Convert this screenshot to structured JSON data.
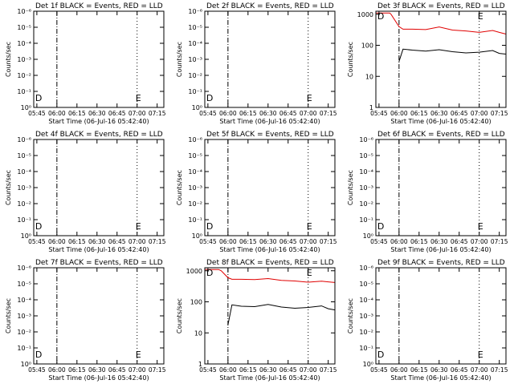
{
  "figure": {
    "background": "#ffffff",
    "axis_color": "#000000",
    "events_color": "#000000",
    "lld_color": "#e00000"
  },
  "chart_data": [
    {
      "type": "line",
      "title": "Det 1f BLACK = Events, RED = LLD",
      "xlabel": "Start Time (06-Jul-16 05:42:40)",
      "ylabel": "Counts/sec",
      "xticks": [
        "05:45",
        "06:00",
        "06:15",
        "06:30",
        "06:45",
        "07:00",
        "07:15"
      ],
      "yticks": [
        "10⁰",
        "10⁻¹",
        "10⁻²",
        "10⁻³",
        "10⁻⁴",
        "10⁻⁵",
        "10⁻⁶"
      ],
      "scale": "low",
      "markers": [
        {
          "time": "06:00",
          "style": "dashdot"
        },
        {
          "time": "07:00",
          "style": "dotted"
        }
      ],
      "labels": [
        {
          "text": "D",
          "time": "05:45"
        },
        {
          "text": "E",
          "time": "07:00"
        }
      ],
      "series": []
    },
    {
      "type": "line",
      "title": "Det 2f BLACK = Events, RED = LLD",
      "xlabel": "Start Time (06-Jul-16 05:42:40)",
      "ylabel": "Counts/sec",
      "xticks": [
        "05:45",
        "06:00",
        "06:15",
        "06:30",
        "06:45",
        "07:00",
        "07:15"
      ],
      "yticks": [
        "10⁰",
        "10⁻¹",
        "10⁻²",
        "10⁻³",
        "10⁻⁴",
        "10⁻⁵",
        "10⁻⁶"
      ],
      "scale": "low",
      "markers": [
        {
          "time": "06:00",
          "style": "dashdot"
        },
        {
          "time": "07:00",
          "style": "dotted"
        }
      ],
      "labels": [
        {
          "text": "D",
          "time": "05:45"
        },
        {
          "text": "E",
          "time": "07:00"
        }
      ],
      "series": []
    },
    {
      "type": "line",
      "title": "Det 3f BLACK = Events, RED = LLD",
      "xlabel": "Start Time (06-Jul-16 05:42:40)",
      "ylabel": "Counts/sec",
      "xticks": [
        "05:45",
        "06:00",
        "06:15",
        "06:30",
        "06:45",
        "07:00",
        "07:15"
      ],
      "yticks": [
        "1",
        "10",
        "100",
        "1000"
      ],
      "scale": "high",
      "markers": [
        {
          "time": "06:00",
          "style": "dashdot"
        },
        {
          "time": "07:00",
          "style": "dotted"
        }
      ],
      "labels": [
        {
          "text": "D",
          "time": "05:45"
        },
        {
          "text": "E",
          "time": "07:00"
        }
      ],
      "series": [
        {
          "color": "red",
          "x": [
            "05:43",
            "05:53",
            "05:54",
            "06:00",
            "06:03",
            "06:10",
            "06:20",
            "06:30",
            "06:40",
            "06:50",
            "07:00",
            "07:10",
            "07:15",
            "07:20"
          ],
          "y": [
            1100,
            1100,
            1000,
            400,
            330,
            330,
            320,
            390,
            310,
            290,
            260,
            300,
            260,
            230
          ]
        },
        {
          "color": "black",
          "x": [
            "06:00",
            "06:03",
            "06:10",
            "06:20",
            "06:30",
            "06:40",
            "06:50",
            "07:00",
            "07:10",
            "07:15",
            "07:20"
          ],
          "y": [
            30,
            75,
            70,
            65,
            72,
            62,
            57,
            60,
            68,
            55,
            52
          ]
        }
      ]
    },
    {
      "type": "line",
      "title": "Det 4f BLACK = Events, RED = LLD",
      "xlabel": "Start Time (06-Jul-16 05:42:40)",
      "ylabel": "Counts/sec",
      "xticks": [
        "05:45",
        "06:00",
        "06:15",
        "06:30",
        "06:45",
        "07:00",
        "07:15"
      ],
      "yticks": [
        "10⁰",
        "10⁻¹",
        "10⁻²",
        "10⁻³",
        "10⁻⁴",
        "10⁻⁵",
        "10⁻⁶"
      ],
      "scale": "low",
      "markers": [
        {
          "time": "06:00",
          "style": "dashdot"
        },
        {
          "time": "07:00",
          "style": "dotted"
        }
      ],
      "labels": [
        {
          "text": "D",
          "time": "05:45"
        },
        {
          "text": "E",
          "time": "07:00"
        }
      ],
      "series": []
    },
    {
      "type": "line",
      "title": "Det 5f BLACK = Events, RED = LLD",
      "xlabel": "Start Time (06-Jul-16 05:42:40)",
      "ylabel": "Counts/sec",
      "xticks": [
        "05:45",
        "06:00",
        "06:15",
        "06:30",
        "06:45",
        "07:00",
        "07:15"
      ],
      "yticks": [
        "10⁰",
        "10⁻¹",
        "10⁻²",
        "10⁻³",
        "10⁻⁴",
        "10⁻⁵",
        "10⁻⁶"
      ],
      "scale": "low",
      "markers": [
        {
          "time": "06:00",
          "style": "dashdot"
        },
        {
          "time": "07:00",
          "style": "dotted"
        }
      ],
      "labels": [
        {
          "text": "D",
          "time": "05:45"
        },
        {
          "text": "E",
          "time": "07:00"
        }
      ],
      "series": []
    },
    {
      "type": "line",
      "title": "Det 6f BLACK = Events, RED = LLD",
      "xlabel": "Start Time (06-Jul-16 05:42:40)",
      "ylabel": "Counts/sec",
      "xticks": [
        "05:45",
        "06:00",
        "06:15",
        "06:30",
        "06:45",
        "07:00",
        "07:15"
      ],
      "yticks": [
        "10⁰",
        "10⁻¹",
        "10⁻²",
        "10⁻³",
        "10⁻⁴",
        "10⁻⁵",
        "10⁻⁶"
      ],
      "scale": "low",
      "markers": [
        {
          "time": "06:00",
          "style": "dashdot"
        },
        {
          "time": "07:00",
          "style": "dotted"
        }
      ],
      "labels": [
        {
          "text": "D",
          "time": "05:45"
        },
        {
          "text": "E",
          "time": "07:00"
        }
      ],
      "series": []
    },
    {
      "type": "line",
      "title": "Det 7f BLACK = Events, RED = LLD",
      "xlabel": "Start Time (06-Jul-16 05:42:40)",
      "ylabel": "Counts/sec",
      "xticks": [
        "05:45",
        "06:00",
        "06:15",
        "06:30",
        "06:45",
        "07:00",
        "07:15"
      ],
      "yticks": [
        "10⁰",
        "10⁻¹",
        "10⁻²",
        "10⁻³",
        "10⁻⁴",
        "10⁻⁵",
        "10⁻⁶"
      ],
      "scale": "low",
      "markers": [
        {
          "time": "06:00",
          "style": "dashdot"
        },
        {
          "time": "07:00",
          "style": "dotted"
        }
      ],
      "labels": [
        {
          "text": "D",
          "time": "05:45"
        },
        {
          "text": "E",
          "time": "07:00"
        }
      ],
      "series": []
    },
    {
      "type": "line",
      "title": "Det 8f BLACK = Events, RED = LLD",
      "xlabel": "Start Time (06-Jul-16 05:42:40)",
      "ylabel": "Counts/sec",
      "xticks": [
        "05:45",
        "06:00",
        "06:15",
        "06:30",
        "06:45",
        "07:00",
        "07:15"
      ],
      "yticks": [
        "1",
        "10",
        "100",
        "1000"
      ],
      "scale": "high",
      "markers": [
        {
          "time": "06:00",
          "style": "dashdot"
        },
        {
          "time": "07:00",
          "style": "dotted"
        }
      ],
      "labels": [
        {
          "text": "D",
          "time": "05:45"
        },
        {
          "text": "E",
          "time": "07:00"
        }
      ],
      "series": [
        {
          "color": "red",
          "x": [
            "05:43",
            "05:53",
            "05:55",
            "06:00",
            "06:03",
            "06:10",
            "06:20",
            "06:30",
            "06:40",
            "06:50",
            "07:00",
            "07:10",
            "07:15",
            "07:20"
          ],
          "y": [
            1100,
            1100,
            1000,
            600,
            530,
            530,
            520,
            560,
            490,
            470,
            430,
            460,
            440,
            420
          ]
        },
        {
          "color": "black",
          "x": [
            "06:00",
            "06:03",
            "06:10",
            "06:20",
            "06:30",
            "06:40",
            "06:50",
            "07:00",
            "07:10",
            "07:15",
            "07:20"
          ],
          "y": [
            18,
            80,
            72,
            70,
            82,
            68,
            62,
            66,
            74,
            60,
            55
          ]
        }
      ]
    },
    {
      "type": "line",
      "title": "Det 9f BLACK = Events, RED = LLD",
      "xlabel": "Start Time (06-Jul-16 05:42:40)",
      "ylabel": "Counts/sec",
      "xticks": [
        "05:45",
        "06:00",
        "06:15",
        "06:30",
        "06:45",
        "07:00",
        "07:15"
      ],
      "yticks": [
        "10⁰",
        "10⁻¹",
        "10⁻²",
        "10⁻³",
        "10⁻⁴",
        "10⁻⁵",
        "10⁻⁶"
      ],
      "scale": "low",
      "markers": [
        {
          "time": "06:00",
          "style": "dashdot"
        },
        {
          "time": "07:00",
          "style": "dotted"
        }
      ],
      "labels": [
        {
          "text": "D",
          "time": "05:45"
        },
        {
          "text": "E",
          "time": "07:00"
        }
      ],
      "series": []
    }
  ]
}
